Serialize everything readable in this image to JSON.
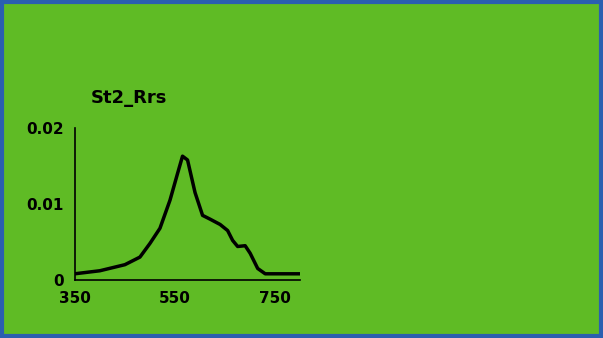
{
  "chart_data": {
    "type": "line",
    "title": "St2_Rrs",
    "x": [
      350,
      400,
      450,
      480,
      500,
      520,
      540,
      555,
      565,
      575,
      590,
      605,
      620,
      640,
      655,
      665,
      675,
      690,
      700,
      715,
      730,
      750,
      800
    ],
    "values": [
      0.0008,
      0.0012,
      0.002,
      0.003,
      0.0048,
      0.0068,
      0.0105,
      0.014,
      0.0163,
      0.0158,
      0.0115,
      0.0085,
      0.008,
      0.0073,
      0.0065,
      0.0052,
      0.0044,
      0.0045,
      0.0035,
      0.0015,
      0.0008,
      0.0008,
      0.0008
    ],
    "color": "#000000",
    "xlim": [
      350,
      800
    ],
    "xticks": [
      350,
      550,
      750
    ],
    "ylim": [
      0,
      0.02
    ],
    "yticks": [
      0,
      0.01,
      0.02
    ],
    "grid": false
  }
}
